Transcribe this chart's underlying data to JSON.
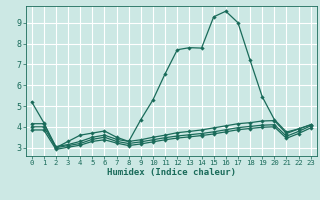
{
  "xlabel": "Humidex (Indice chaleur)",
  "bg_color": "#cce8e4",
  "grid_color": "#ffffff",
  "line_color": "#1a6b5a",
  "xlim": [
    -0.5,
    23.5
  ],
  "ylim": [
    2.6,
    9.8
  ],
  "yticks": [
    3,
    4,
    5,
    6,
    7,
    8,
    9
  ],
  "xticks": [
    0,
    1,
    2,
    3,
    4,
    5,
    6,
    7,
    8,
    9,
    10,
    11,
    12,
    13,
    14,
    15,
    16,
    17,
    18,
    19,
    20,
    21,
    22,
    23
  ],
  "series1_x": [
    0,
    1,
    2,
    3,
    4,
    5,
    6,
    7,
    8,
    9,
    10,
    11,
    12,
    13,
    14,
    15,
    16,
    17,
    18,
    19,
    20,
    21,
    22,
    23
  ],
  "series1_y": [
    5.2,
    4.2,
    3.0,
    3.3,
    3.6,
    3.7,
    3.8,
    3.5,
    3.3,
    4.35,
    5.3,
    6.55,
    7.7,
    7.8,
    7.78,
    9.28,
    9.55,
    9.0,
    7.2,
    5.45,
    4.35,
    3.75,
    3.9,
    4.1
  ],
  "series2_x": [
    0,
    1,
    2,
    3,
    4,
    5,
    6,
    7,
    8,
    9,
    10,
    11,
    12,
    13,
    14,
    15,
    16,
    17,
    18,
    19,
    20,
    21,
    22,
    23
  ],
  "series2_y": [
    4.15,
    4.15,
    3.05,
    3.15,
    3.3,
    3.5,
    3.6,
    3.4,
    3.3,
    3.38,
    3.5,
    3.6,
    3.72,
    3.78,
    3.85,
    3.95,
    4.05,
    4.15,
    4.2,
    4.28,
    4.3,
    3.68,
    3.9,
    4.1
  ],
  "series3_x": [
    0,
    1,
    2,
    3,
    4,
    5,
    6,
    7,
    8,
    9,
    10,
    11,
    12,
    13,
    14,
    15,
    16,
    17,
    18,
    19,
    20,
    21,
    22,
    23
  ],
  "series3_y": [
    4.0,
    4.0,
    3.0,
    3.1,
    3.2,
    3.4,
    3.5,
    3.3,
    3.2,
    3.28,
    3.38,
    3.48,
    3.56,
    3.62,
    3.68,
    3.76,
    3.86,
    3.96,
    4.02,
    4.08,
    4.1,
    3.55,
    3.78,
    4.05
  ],
  "series4_x": [
    0,
    1,
    2,
    3,
    4,
    5,
    6,
    7,
    8,
    9,
    10,
    11,
    12,
    13,
    14,
    15,
    16,
    17,
    18,
    19,
    20,
    21,
    22,
    23
  ],
  "series4_y": [
    3.85,
    3.85,
    2.92,
    3.02,
    3.12,
    3.3,
    3.38,
    3.22,
    3.1,
    3.18,
    3.28,
    3.38,
    3.46,
    3.52,
    3.58,
    3.66,
    3.76,
    3.86,
    3.92,
    3.98,
    4.0,
    3.45,
    3.68,
    3.95
  ]
}
